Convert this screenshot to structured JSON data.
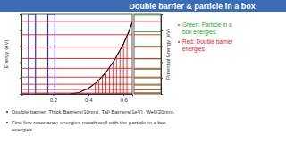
{
  "slide": {
    "title": "Double barrier & particle in a box",
    "notes": [
      {
        "lines": [
          "Green: Particle in a",
          "box energies."
        ],
        "color": "#22aa22"
      },
      {
        "lines": [
          "Red: Double barrier",
          "energies"
        ],
        "color": "#dd2222"
      }
    ],
    "bullets": [
      {
        "lines": [
          "Double barrier: Thick Barriers(10nm), Tall Barriers(1eV), Well(20nm)."
        ]
      },
      {
        "lines": [
          "First few resonance energies match well with the particle in a box",
          "energies."
        ]
      }
    ]
  },
  "chart_data": [
    {
      "type": "line",
      "ylabel": "Energy (eV)",
      "xlim": [
        0.02,
        0.65
      ],
      "xticks": [
        0.2,
        0.4,
        0.6
      ],
      "ylim": [
        0,
        1
      ],
      "yticks": [
        0,
        0.2,
        0.4,
        0.6,
        0.8,
        1
      ],
      "tick_labels": "x",
      "series": [
        {
          "type": "line",
          "color": "#2233cc",
          "x": [
            0.02,
            0.06,
            0.06,
            0.1,
            0.1,
            0.17,
            0.17,
            0.21,
            0.21,
            0.65
          ],
          "values": [
            0,
            0,
            1,
            1,
            0,
            0,
            1,
            1,
            0,
            0
          ]
        },
        {
          "type": "line",
          "color": "#000000",
          "x": [
            0.3,
            0.35,
            0.4,
            0.45,
            0.5,
            0.55,
            0.6,
            0.63,
            0.65
          ],
          "values": [
            0,
            0.02,
            0.07,
            0.15,
            0.27,
            0.43,
            0.63,
            0.78,
            0.9
          ]
        },
        {
          "type": "stem",
          "color": "#dd2222",
          "x": [
            0.44,
            0.46,
            0.48,
            0.5,
            0.52,
            0.54,
            0.56,
            0.58,
            0.6,
            0.62
          ],
          "values": [
            0.13,
            0.17,
            0.22,
            0.27,
            0.33,
            0.4,
            0.47,
            0.55,
            0.63,
            0.73
          ]
        },
        {
          "type": "hline",
          "color": "#dd2222",
          "values": [
            0.011,
            0.056,
            0.122,
            0.211,
            0.322,
            0.444,
            0.589,
            0.744,
            0.911
          ]
        }
      ]
    },
    {
      "type": "hline",
      "ylabel": "Potential Energy (eV)",
      "ylim": [
        0,
        1
      ],
      "yticks": [
        0,
        0.2,
        0.4,
        0.6,
        0.8,
        1
      ],
      "tick_labels": false,
      "series": [
        {
          "type": "hline",
          "color": "#22aa22",
          "values": [
            0.012,
            0.05,
            0.11,
            0.2,
            0.31,
            0.44,
            0.6,
            0.78,
            0.99
          ]
        },
        {
          "type": "hline",
          "color": "#dd2222",
          "values": [
            0.011,
            0.056,
            0.122,
            0.211,
            0.322,
            0.444,
            0.589,
            0.744,
            0.911
          ]
        }
      ]
    }
  ]
}
